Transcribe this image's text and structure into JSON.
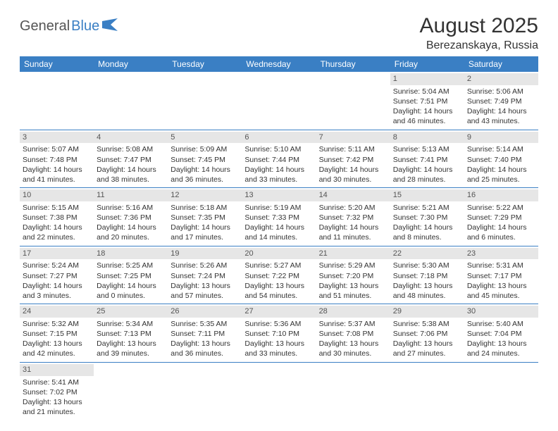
{
  "logo": {
    "text1": "General",
    "text2": "Blue"
  },
  "title": "August 2025",
  "location": "Berezanskaya, Russia",
  "colors": {
    "header_bg": "#3a7fc4",
    "header_text": "#ffffff",
    "daynum_bg": "#e6e6e6",
    "cell_border": "#3a7fc4"
  },
  "day_names": [
    "Sunday",
    "Monday",
    "Tuesday",
    "Wednesday",
    "Thursday",
    "Friday",
    "Saturday"
  ],
  "weeks": [
    [
      {
        "n": "",
        "sunrise": "",
        "sunset": "",
        "daylight": ""
      },
      {
        "n": "",
        "sunrise": "",
        "sunset": "",
        "daylight": ""
      },
      {
        "n": "",
        "sunrise": "",
        "sunset": "",
        "daylight": ""
      },
      {
        "n": "",
        "sunrise": "",
        "sunset": "",
        "daylight": ""
      },
      {
        "n": "",
        "sunrise": "",
        "sunset": "",
        "daylight": ""
      },
      {
        "n": "1",
        "sunrise": "Sunrise: 5:04 AM",
        "sunset": "Sunset: 7:51 PM",
        "daylight": "Daylight: 14 hours and 46 minutes."
      },
      {
        "n": "2",
        "sunrise": "Sunrise: 5:06 AM",
        "sunset": "Sunset: 7:49 PM",
        "daylight": "Daylight: 14 hours and 43 minutes."
      }
    ],
    [
      {
        "n": "3",
        "sunrise": "Sunrise: 5:07 AM",
        "sunset": "Sunset: 7:48 PM",
        "daylight": "Daylight: 14 hours and 41 minutes."
      },
      {
        "n": "4",
        "sunrise": "Sunrise: 5:08 AM",
        "sunset": "Sunset: 7:47 PM",
        "daylight": "Daylight: 14 hours and 38 minutes."
      },
      {
        "n": "5",
        "sunrise": "Sunrise: 5:09 AM",
        "sunset": "Sunset: 7:45 PM",
        "daylight": "Daylight: 14 hours and 36 minutes."
      },
      {
        "n": "6",
        "sunrise": "Sunrise: 5:10 AM",
        "sunset": "Sunset: 7:44 PM",
        "daylight": "Daylight: 14 hours and 33 minutes."
      },
      {
        "n": "7",
        "sunrise": "Sunrise: 5:11 AM",
        "sunset": "Sunset: 7:42 PM",
        "daylight": "Daylight: 14 hours and 30 minutes."
      },
      {
        "n": "8",
        "sunrise": "Sunrise: 5:13 AM",
        "sunset": "Sunset: 7:41 PM",
        "daylight": "Daylight: 14 hours and 28 minutes."
      },
      {
        "n": "9",
        "sunrise": "Sunrise: 5:14 AM",
        "sunset": "Sunset: 7:40 PM",
        "daylight": "Daylight: 14 hours and 25 minutes."
      }
    ],
    [
      {
        "n": "10",
        "sunrise": "Sunrise: 5:15 AM",
        "sunset": "Sunset: 7:38 PM",
        "daylight": "Daylight: 14 hours and 22 minutes."
      },
      {
        "n": "11",
        "sunrise": "Sunrise: 5:16 AM",
        "sunset": "Sunset: 7:36 PM",
        "daylight": "Daylight: 14 hours and 20 minutes."
      },
      {
        "n": "12",
        "sunrise": "Sunrise: 5:18 AM",
        "sunset": "Sunset: 7:35 PM",
        "daylight": "Daylight: 14 hours and 17 minutes."
      },
      {
        "n": "13",
        "sunrise": "Sunrise: 5:19 AM",
        "sunset": "Sunset: 7:33 PM",
        "daylight": "Daylight: 14 hours and 14 minutes."
      },
      {
        "n": "14",
        "sunrise": "Sunrise: 5:20 AM",
        "sunset": "Sunset: 7:32 PM",
        "daylight": "Daylight: 14 hours and 11 minutes."
      },
      {
        "n": "15",
        "sunrise": "Sunrise: 5:21 AM",
        "sunset": "Sunset: 7:30 PM",
        "daylight": "Daylight: 14 hours and 8 minutes."
      },
      {
        "n": "16",
        "sunrise": "Sunrise: 5:22 AM",
        "sunset": "Sunset: 7:29 PM",
        "daylight": "Daylight: 14 hours and 6 minutes."
      }
    ],
    [
      {
        "n": "17",
        "sunrise": "Sunrise: 5:24 AM",
        "sunset": "Sunset: 7:27 PM",
        "daylight": "Daylight: 14 hours and 3 minutes."
      },
      {
        "n": "18",
        "sunrise": "Sunrise: 5:25 AM",
        "sunset": "Sunset: 7:25 PM",
        "daylight": "Daylight: 14 hours and 0 minutes."
      },
      {
        "n": "19",
        "sunrise": "Sunrise: 5:26 AM",
        "sunset": "Sunset: 7:24 PM",
        "daylight": "Daylight: 13 hours and 57 minutes."
      },
      {
        "n": "20",
        "sunrise": "Sunrise: 5:27 AM",
        "sunset": "Sunset: 7:22 PM",
        "daylight": "Daylight: 13 hours and 54 minutes."
      },
      {
        "n": "21",
        "sunrise": "Sunrise: 5:29 AM",
        "sunset": "Sunset: 7:20 PM",
        "daylight": "Daylight: 13 hours and 51 minutes."
      },
      {
        "n": "22",
        "sunrise": "Sunrise: 5:30 AM",
        "sunset": "Sunset: 7:18 PM",
        "daylight": "Daylight: 13 hours and 48 minutes."
      },
      {
        "n": "23",
        "sunrise": "Sunrise: 5:31 AM",
        "sunset": "Sunset: 7:17 PM",
        "daylight": "Daylight: 13 hours and 45 minutes."
      }
    ],
    [
      {
        "n": "24",
        "sunrise": "Sunrise: 5:32 AM",
        "sunset": "Sunset: 7:15 PM",
        "daylight": "Daylight: 13 hours and 42 minutes."
      },
      {
        "n": "25",
        "sunrise": "Sunrise: 5:34 AM",
        "sunset": "Sunset: 7:13 PM",
        "daylight": "Daylight: 13 hours and 39 minutes."
      },
      {
        "n": "26",
        "sunrise": "Sunrise: 5:35 AM",
        "sunset": "Sunset: 7:11 PM",
        "daylight": "Daylight: 13 hours and 36 minutes."
      },
      {
        "n": "27",
        "sunrise": "Sunrise: 5:36 AM",
        "sunset": "Sunset: 7:10 PM",
        "daylight": "Daylight: 13 hours and 33 minutes."
      },
      {
        "n": "28",
        "sunrise": "Sunrise: 5:37 AM",
        "sunset": "Sunset: 7:08 PM",
        "daylight": "Daylight: 13 hours and 30 minutes."
      },
      {
        "n": "29",
        "sunrise": "Sunrise: 5:38 AM",
        "sunset": "Sunset: 7:06 PM",
        "daylight": "Daylight: 13 hours and 27 minutes."
      },
      {
        "n": "30",
        "sunrise": "Sunrise: 5:40 AM",
        "sunset": "Sunset: 7:04 PM",
        "daylight": "Daylight: 13 hours and 24 minutes."
      }
    ],
    [
      {
        "n": "31",
        "sunrise": "Sunrise: 5:41 AM",
        "sunset": "Sunset: 7:02 PM",
        "daylight": "Daylight: 13 hours and 21 minutes."
      },
      {
        "n": "",
        "sunrise": "",
        "sunset": "",
        "daylight": ""
      },
      {
        "n": "",
        "sunrise": "",
        "sunset": "",
        "daylight": ""
      },
      {
        "n": "",
        "sunrise": "",
        "sunset": "",
        "daylight": ""
      },
      {
        "n": "",
        "sunrise": "",
        "sunset": "",
        "daylight": ""
      },
      {
        "n": "",
        "sunrise": "",
        "sunset": "",
        "daylight": ""
      },
      {
        "n": "",
        "sunrise": "",
        "sunset": "",
        "daylight": ""
      }
    ]
  ]
}
